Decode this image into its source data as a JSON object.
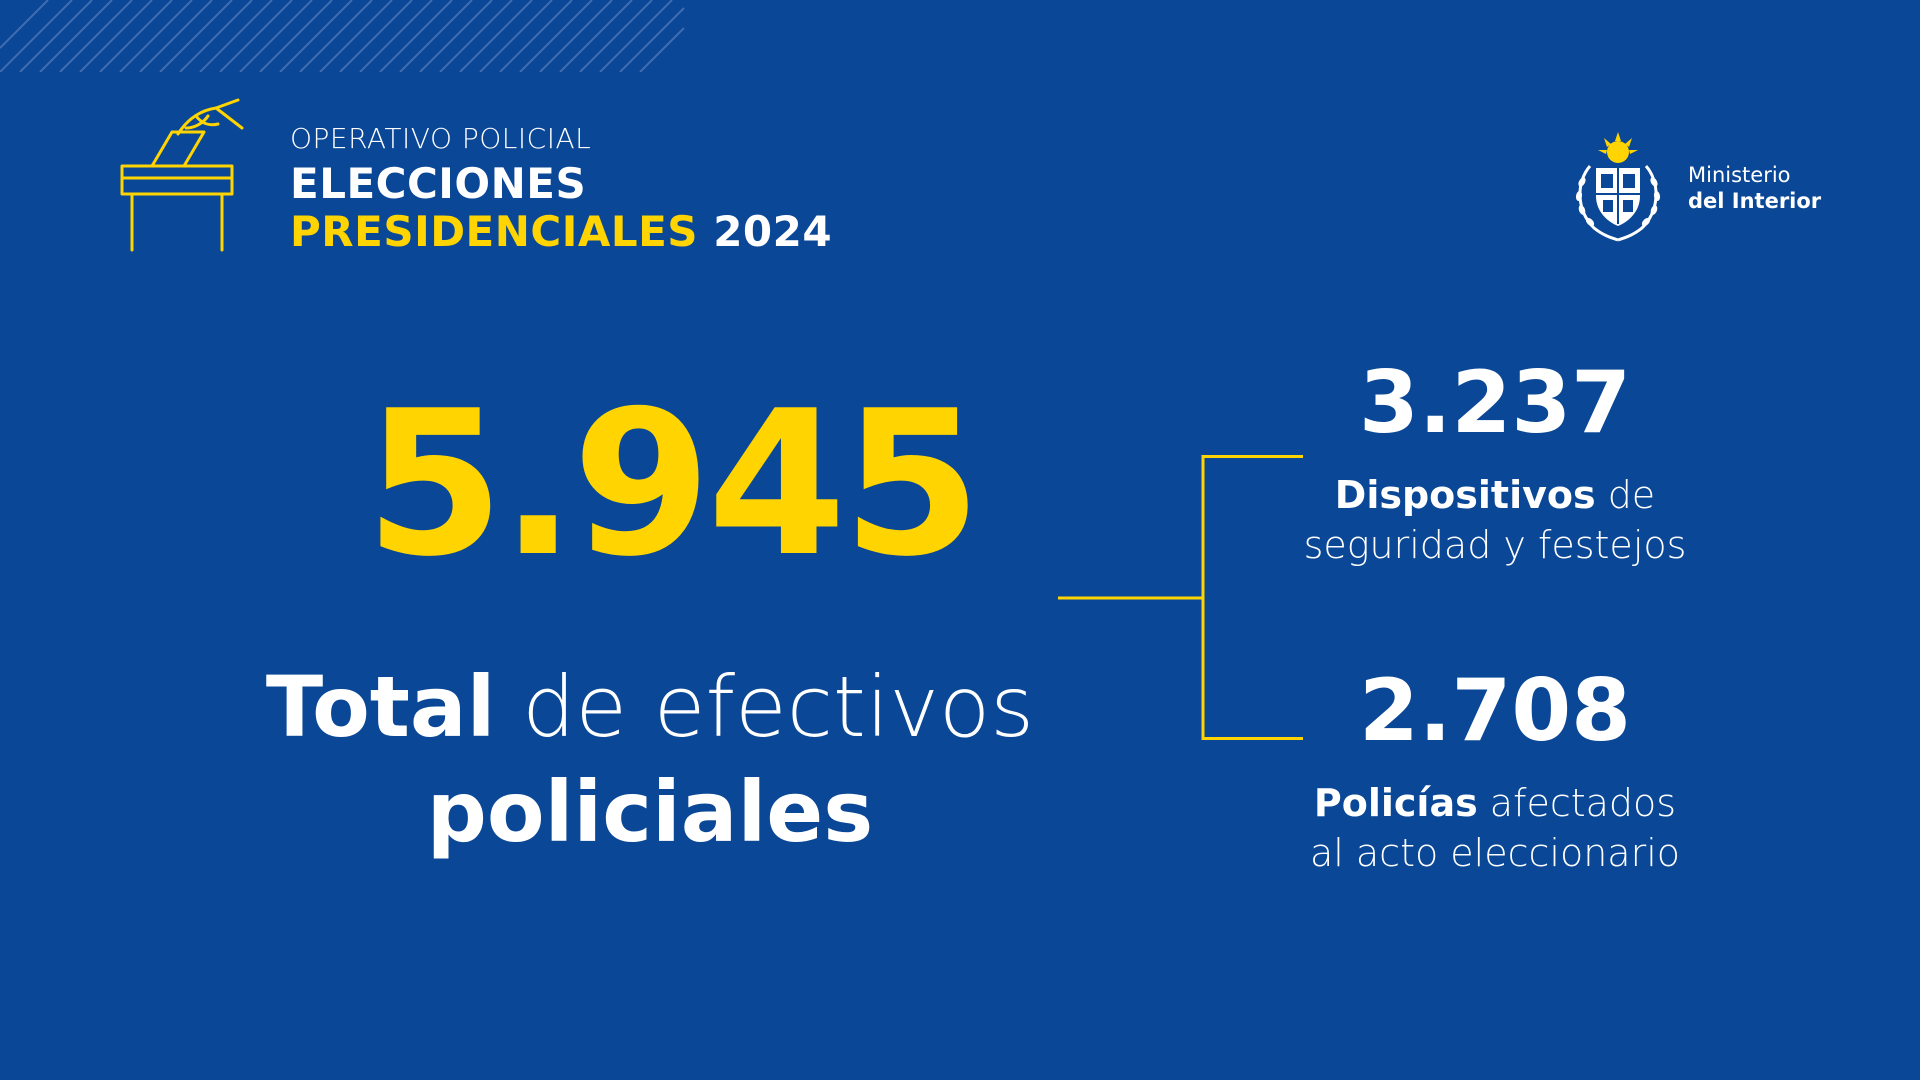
{
  "header": {
    "overline": "OPERATIVO POLICIAL",
    "title": "ELECCIONES",
    "subtitle_highlight": "PRESIDENCIALES",
    "subtitle_year": "2024"
  },
  "ministry": {
    "line1": "Ministerio",
    "line2": "del Interior"
  },
  "total": {
    "number": "5.945",
    "label_bold": "Total",
    "label_rest": " de efectivos",
    "label_line2": "policiales"
  },
  "stats": [
    {
      "number": "3.237",
      "desc_bold": "Dispositivos",
      "desc_rest": " de",
      "desc_line2": "seguridad y festejos"
    },
    {
      "number": "2.708",
      "desc_bold": "Policías",
      "desc_rest": " afectados",
      "desc_line2": "al acto eleccionario"
    }
  ],
  "colors": {
    "background": "#0a4796",
    "accent": "#ffd400",
    "text": "#ffffff"
  },
  "icons": [
    "ballot-box-icon",
    "coat-of-arms-icon"
  ]
}
